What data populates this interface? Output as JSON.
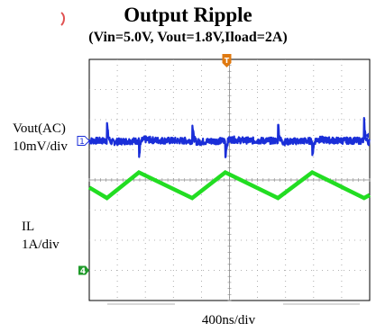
{
  "chart_data": {
    "type": "line",
    "title": "Output Ripple",
    "subtitle": "(Vin=5.0V, Vout=1.8V,Iload=2A)",
    "xlabel": "400ns/div",
    "grid": true,
    "grid_divisions": {
      "x": 10,
      "y": 8
    },
    "series": [
      {
        "name": "Vout(AC)",
        "scale": "10mV/div",
        "color": "#1a2ed8",
        "ground_marker": "1",
        "ground_div": 5.3,
        "ripple_amplitude_div": 0.25,
        "switching_edges_div": [
          0.63,
          1.77,
          3.67,
          4.85,
          6.73,
          7.95,
          9.8
        ],
        "spike_div": 0.75
      },
      {
        "name": "IL",
        "scale": "1A/div",
        "color": "#22dd22",
        "ground_marker": "4",
        "ground_div": 1.0,
        "x_div": [
          0,
          0.63,
          1.77,
          3.67,
          4.85,
          6.73,
          7.95,
          9.8,
          10
        ],
        "y_div": [
          3.75,
          3.4,
          4.25,
          3.4,
          4.25,
          3.4,
          4.25,
          3.4,
          3.5
        ]
      }
    ],
    "trigger_marker": "T",
    "trigger_color": "#e07a10"
  }
}
